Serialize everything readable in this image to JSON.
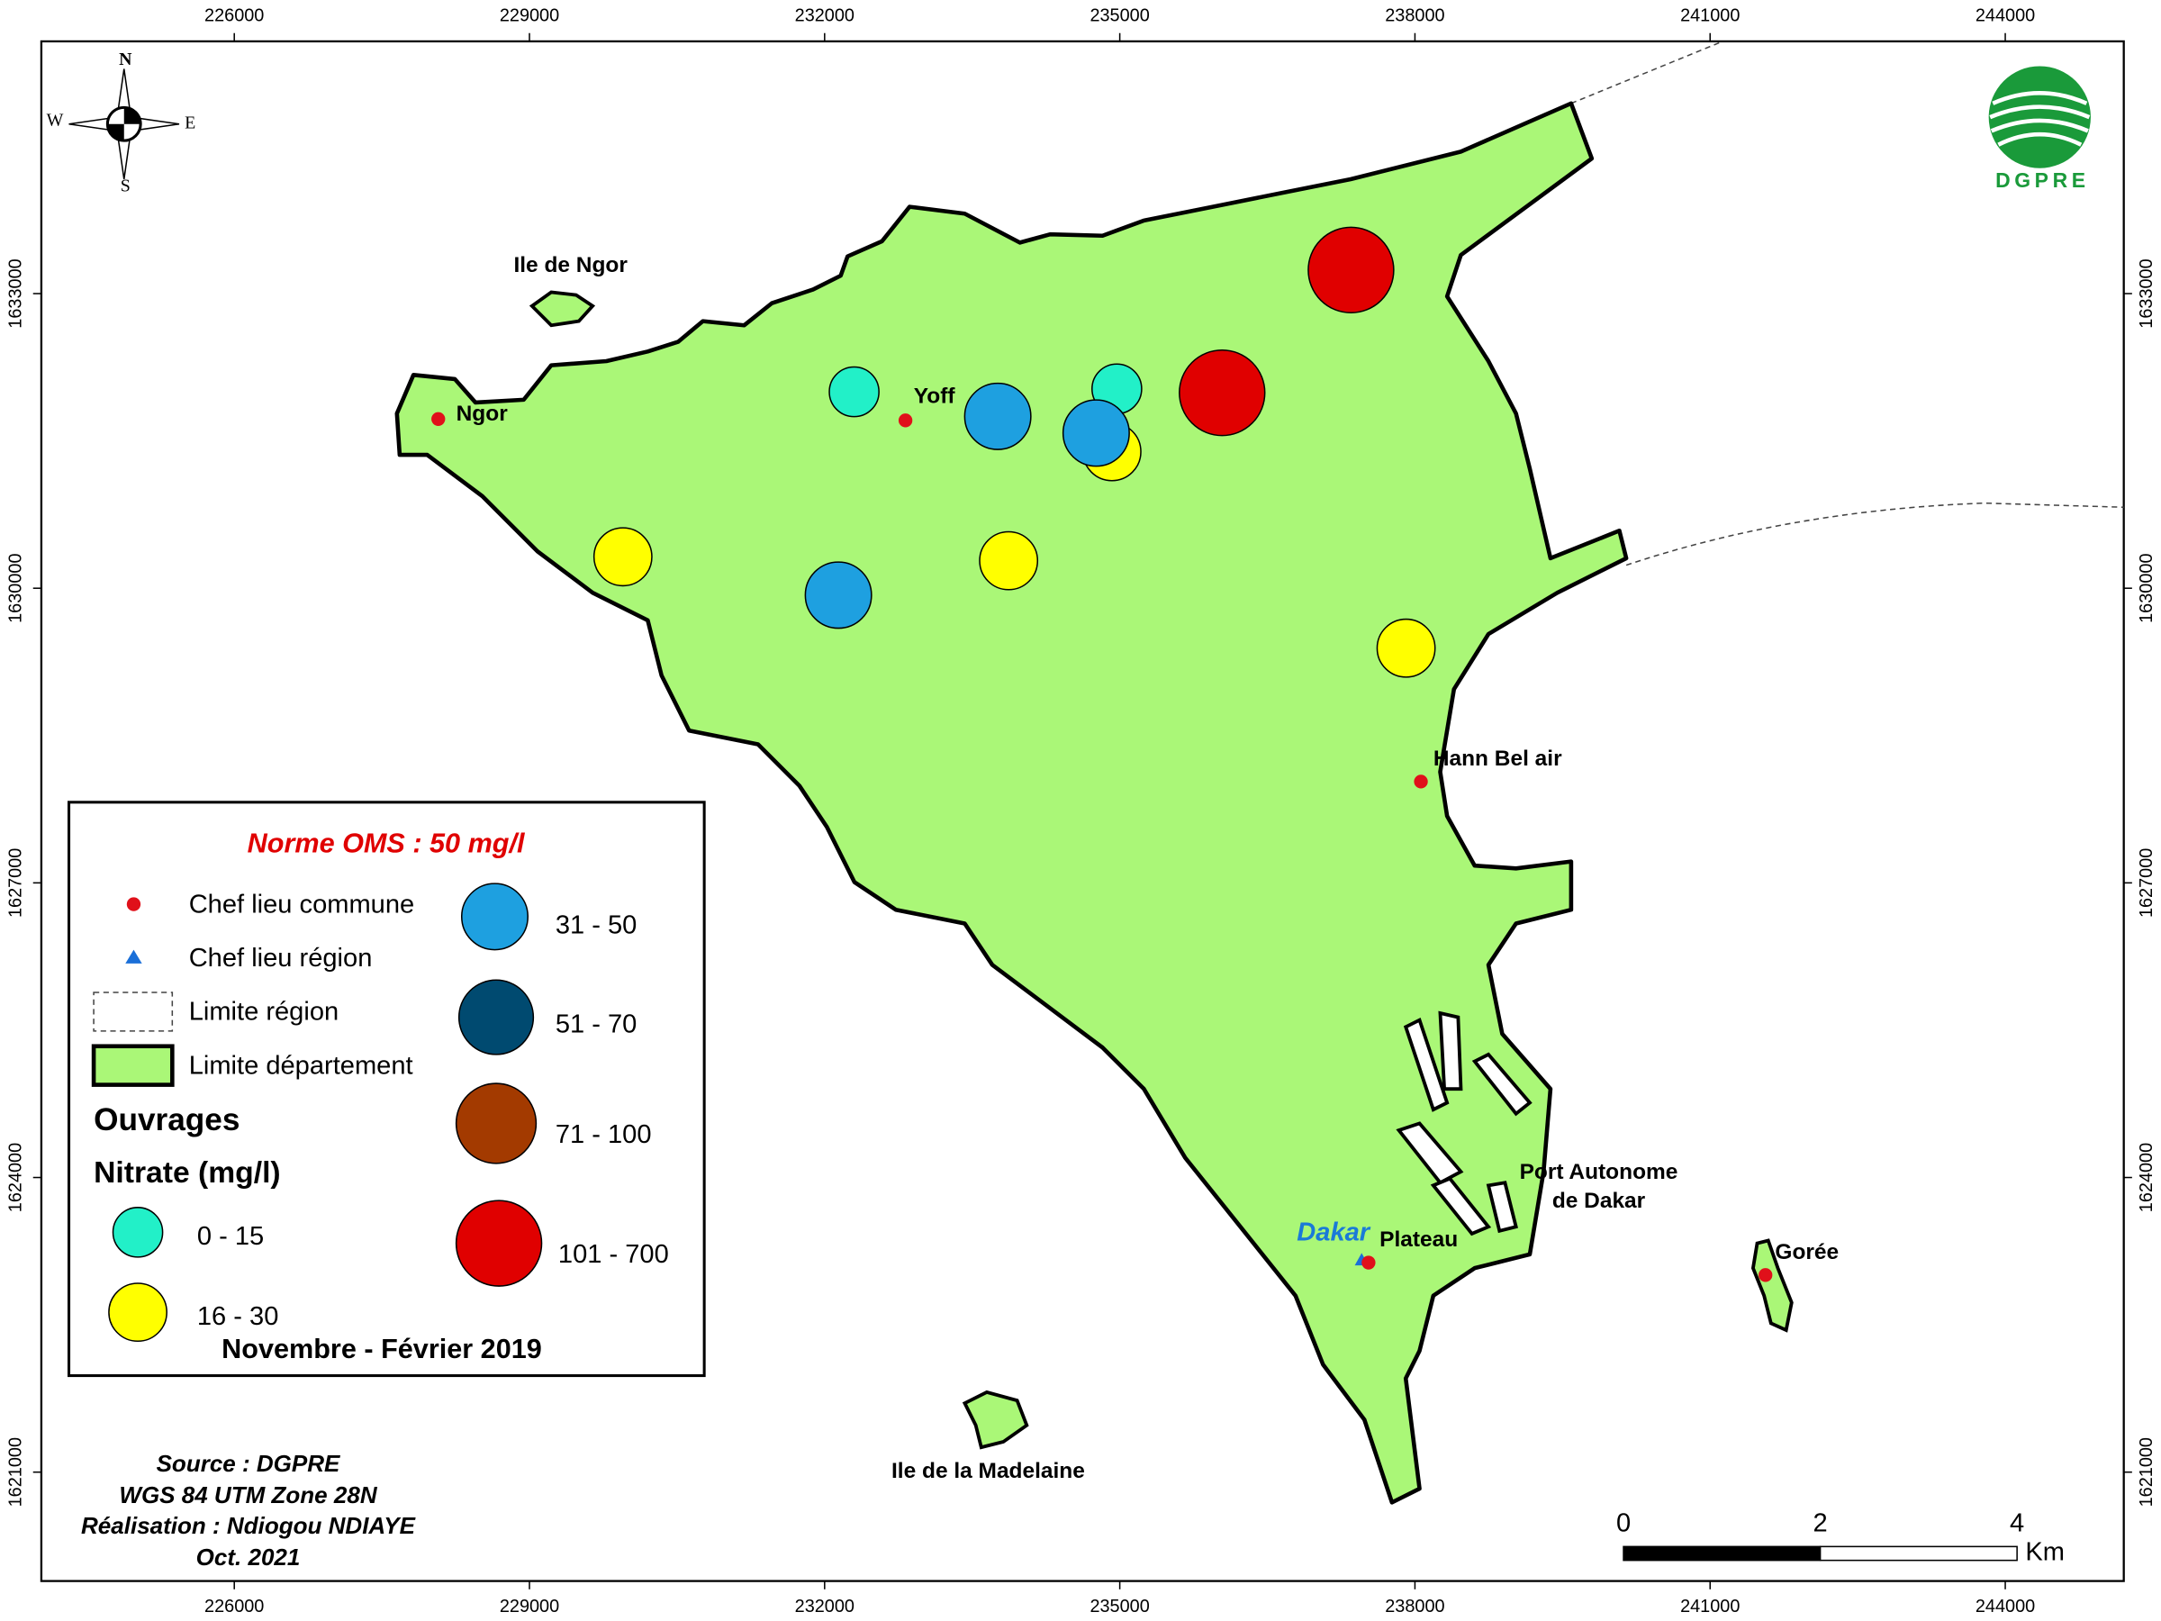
{
  "map": {
    "xticks": [
      226000,
      229000,
      232000,
      235000,
      238000,
      241000,
      244000
    ],
    "yticks": [
      1621000,
      1624000,
      1627000,
      1630000,
      1633000
    ],
    "labels": [
      "Ile de Ngor",
      "Ngor",
      "Yoff",
      "Hann Bel air",
      "Port Autonome",
      "de Dakar",
      "Dakar",
      "Plateau",
      "Gorée",
      "Ile de la Madelaine"
    ],
    "compass": [
      "N",
      "S",
      "E",
      "W"
    ],
    "logo": "DGPRE",
    "scale_bar": {
      "ticks": [
        0,
        2,
        4
      ],
      "unit": "Km"
    }
  },
  "legend": {
    "norme": "Norme OMS : 50 mg/l",
    "symbols": [
      "Chef lieu commune",
      "Chef lieu région",
      "Limite région",
      "Limite département"
    ],
    "heading": [
      "Ouvrages",
      "Nitrate (mg/l)"
    ],
    "classes": [
      {
        "label": "0 - 15",
        "color": "#22f0c8",
        "wells": [
          [
            232300,
            1632000
          ],
          [
            234970,
            1632030
          ]
        ]
      },
      {
        "label": "16 - 30",
        "color": "#ffff00",
        "wells": [
          [
            229950,
            1630320
          ],
          [
            233870,
            1630280
          ],
          [
            234920,
            1631390
          ],
          [
            237910,
            1629390
          ]
        ]
      },
      {
        "label": "31 - 50",
        "color": "#1ea0e0",
        "wells": [
          [
            233760,
            1631750
          ],
          [
            234760,
            1631580
          ],
          [
            232140,
            1629930
          ]
        ]
      },
      {
        "label": "51 - 70",
        "color": "#004a70",
        "wells": []
      },
      {
        "label": "71 - 100",
        "color": "#a33a00",
        "wells": []
      },
      {
        "label": "101 - 700",
        "color": "#e00000",
        "wells": [
          [
            237350,
            1633240
          ],
          [
            236040,
            1631990
          ]
        ]
      }
    ],
    "period": "Novembre - Février 2019"
  },
  "credits": [
    "Source : DGPRE",
    "WGS 84 UTM Zone 28N",
    "Réalisation : Ndiogou NDIAYE",
    "Oct. 2021"
  ]
}
